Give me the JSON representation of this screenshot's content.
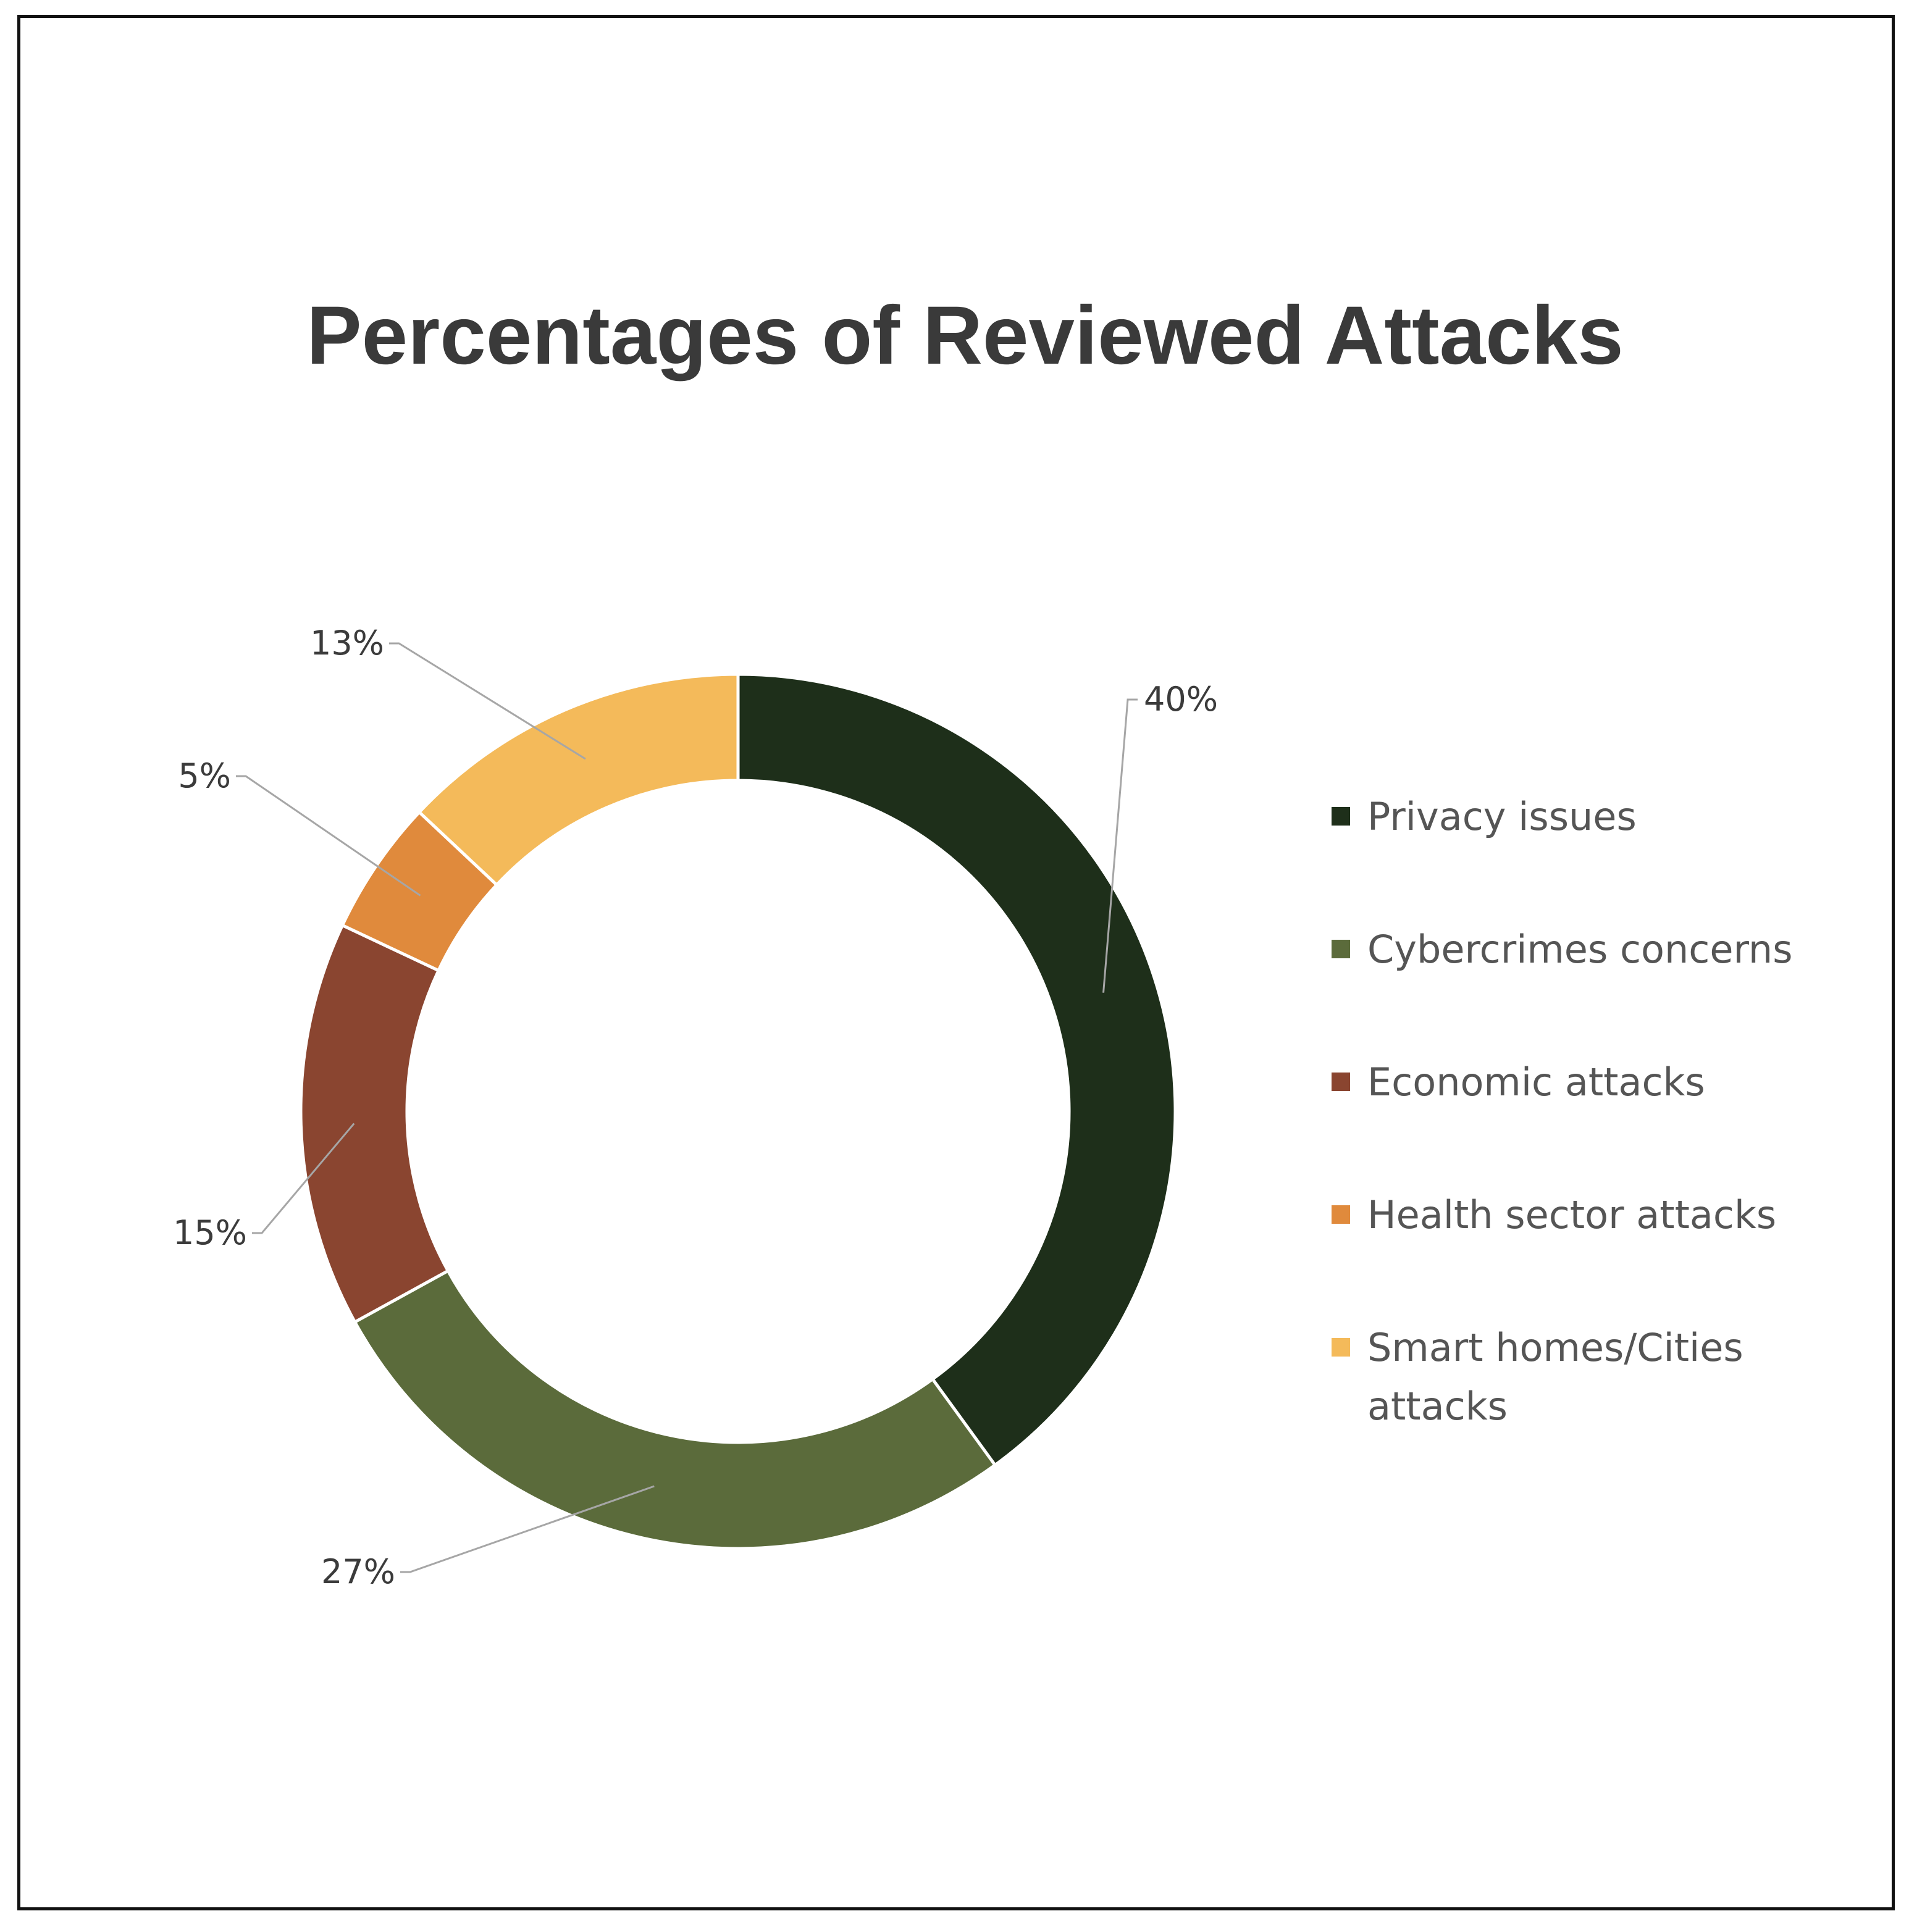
{
  "chart_data": {
    "type": "pie",
    "donut": true,
    "title": "Percentages of Reviewed Attacks",
    "categories": [
      "Privacy issues",
      "Cybercrimes concerns",
      "Economic attacks",
      "Health sector attacks",
      "Smart homes/Cities attacks"
    ],
    "values": [
      40,
      27,
      15,
      5,
      13
    ],
    "data_labels": [
      "40%",
      "27%",
      "15%",
      "5%",
      "13%"
    ],
    "colors": [
      "#1e2f1a",
      "#5b6b3b",
      "#8a4530",
      "#e08a3c",
      "#f4ba5a"
    ],
    "legend_position": "right"
  }
}
